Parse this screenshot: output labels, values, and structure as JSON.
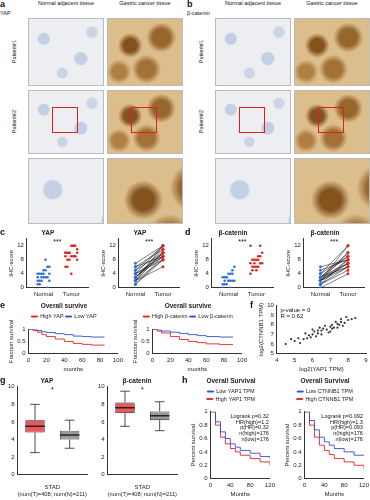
{
  "image_panels": [
    {
      "panel": "a",
      "marker": "YAP",
      "columns": [
        "Normal adjacent tissue",
        "Gastric cancer tissue"
      ],
      "rows": [
        "Patient#1",
        "Patient#2"
      ]
    },
    {
      "panel": "b",
      "marker": "β-catenin",
      "columns": [
        "Normal adjacent tissue",
        "Gastric cancer tissue"
      ],
      "rows": [
        "Patient#1",
        "Patient#2"
      ]
    }
  ],
  "chart_data": [
    {
      "panel": "c",
      "type": "dot",
      "title": "YAP",
      "y_label": "IHC-score",
      "categories": [
        "Normal",
        "Tumor"
      ],
      "values": [
        [
          1,
          2,
          2,
          3,
          3,
          3,
          4,
          4,
          4,
          4,
          5,
          5,
          6,
          6,
          2,
          1,
          3,
          4,
          8,
          0,
          2,
          3
        ],
        [
          6,
          8,
          8,
          9,
          9,
          9,
          10,
          10,
          10,
          10,
          12,
          12,
          12,
          8,
          9,
          6,
          10,
          4,
          12,
          9,
          11,
          10
        ]
      ],
      "colors": [
        "#2f6fd6",
        "#e02424"
      ],
      "annotations": [
        "***"
      ],
      "ylim": [
        0,
        14
      ],
      "yticks": [
        0,
        4,
        8,
        12
      ],
      "grid": false
    },
    {
      "type": "paired",
      "title": "YAP",
      "y_label": "IHC-score",
      "categories": [
        "Normal",
        "Tumor"
      ],
      "pairs": [
        [
          2,
          10
        ],
        [
          3,
          9
        ],
        [
          4,
          12
        ],
        [
          1,
          8
        ],
        [
          5,
          10
        ],
        [
          3,
          11
        ],
        [
          6,
          9
        ],
        [
          2,
          12
        ],
        [
          4,
          8
        ],
        [
          3,
          10
        ],
        [
          7,
          12
        ],
        [
          2,
          6
        ],
        [
          4,
          9
        ],
        [
          5,
          12
        ],
        [
          3,
          10
        ],
        [
          1,
          9
        ],
        [
          6,
          11
        ],
        [
          2,
          8
        ]
      ],
      "color": "#000000",
      "colors": [
        "#2f6fd6",
        "#e02424"
      ],
      "annotations": [
        "***"
      ],
      "ylim": [
        0,
        14
      ],
      "yticks": [
        0,
        4,
        8,
        12
      ],
      "grid": false
    },
    {
      "panel": "d",
      "type": "dot",
      "title": "β-catenin",
      "y_label": "IHC-score",
      "categories": [
        "Normal",
        "Tumor"
      ],
      "values": [
        [
          0,
          1,
          1,
          2,
          2,
          2,
          2,
          3,
          3,
          3,
          4,
          4,
          5,
          6,
          1,
          2,
          3,
          2,
          0,
          4
        ],
        [
          4,
          5,
          6,
          6,
          6,
          7,
          7,
          7,
          8,
          8,
          8,
          9,
          9,
          10,
          12,
          6,
          7,
          5,
          8,
          12
        ]
      ],
      "colors": [
        "#2f6fd6",
        "#e02424"
      ],
      "annotations": [
        "***"
      ],
      "ylim": [
        0,
        14
      ],
      "yticks": [
        0,
        4,
        8,
        12
      ],
      "grid": false
    },
    {
      "type": "paired",
      "title": "β-catenin",
      "y_label": "IHC-score",
      "categories": [
        "Normal",
        "Tumor"
      ],
      "pairs": [
        [
          1,
          6
        ],
        [
          2,
          8
        ],
        [
          3,
          7
        ],
        [
          2,
          12
        ],
        [
          4,
          9
        ],
        [
          1,
          5
        ],
        [
          2,
          7
        ],
        [
          3,
          10
        ],
        [
          5,
          8
        ],
        [
          2,
          6
        ],
        [
          0,
          4
        ],
        [
          3,
          9
        ],
        [
          4,
          12
        ],
        [
          2,
          7
        ],
        [
          1,
          8
        ],
        [
          6,
          8
        ],
        [
          2,
          10
        ],
        [
          3,
          6
        ]
      ],
      "color": "#000000",
      "colors": [
        "#2f6fd6",
        "#e02424"
      ],
      "annotations": [
        "***"
      ],
      "ylim": [
        0,
        14
      ],
      "yticks": [
        0,
        4,
        8,
        12
      ],
      "grid": false
    },
    {
      "panel": "e",
      "type": "line",
      "title": "Overall survive",
      "x_label": "months",
      "y_label": "Fraction survival",
      "line_style": "step",
      "legend": "top",
      "series": [
        {
          "name": "High YAP",
          "color": "#e02424",
          "x": [
            0,
            5,
            10,
            15,
            20,
            30,
            40,
            50,
            60,
            70,
            85
          ],
          "values": [
            1,
            0.95,
            0.88,
            0.78,
            0.7,
            0.6,
            0.5,
            0.42,
            0.38,
            0.35,
            0.35
          ]
        },
        {
          "name": "Low YAP",
          "color": "#2f4fd6",
          "x": [
            0,
            5,
            10,
            15,
            20,
            30,
            40,
            50,
            60,
            70,
            85
          ],
          "values": [
            1,
            0.98,
            0.95,
            0.9,
            0.87,
            0.82,
            0.78,
            0.72,
            0.7,
            0.68,
            0.68
          ]
        }
      ],
      "xlim": [
        0,
        100
      ],
      "xticks": [
        0,
        20,
        40,
        60,
        80,
        100
      ],
      "ylim": [
        0,
        1
      ],
      "yticks": [
        0,
        0.5,
        1
      ],
      "grid": false
    },
    {
      "type": "line",
      "title": "Overall survive",
      "x_label": "months",
      "y_label": "Fraction survival",
      "line_style": "step",
      "legend": "top",
      "series": [
        {
          "name": "High β-catenin",
          "color": "#e02424",
          "x": [
            0,
            5,
            10,
            20,
            30,
            40,
            50,
            60,
            75,
            90
          ],
          "values": [
            1,
            0.93,
            0.85,
            0.7,
            0.58,
            0.5,
            0.45,
            0.4,
            0.37,
            0.37
          ]
        },
        {
          "name": "Low β-catenin",
          "color": "#2f4fd6",
          "x": [
            0,
            5,
            10,
            20,
            30,
            40,
            50,
            60,
            75,
            90
          ],
          "values": [
            1,
            0.97,
            0.93,
            0.88,
            0.83,
            0.78,
            0.74,
            0.7,
            0.68,
            0.68
          ]
        }
      ],
      "xlim": [
        0,
        100
      ],
      "xticks": [
        0,
        20,
        40,
        60,
        80,
        100
      ],
      "ylim": [
        0,
        1
      ],
      "yticks": [
        0,
        0.5,
        1
      ],
      "grid": false
    },
    {
      "panel": "f",
      "type": "scatter",
      "x_label": "log2(YAP1 TPM)",
      "y_label": "log2(CTNNB1 TPM)",
      "annotations": [
        "p-value = 0",
        "R = 0.62"
      ],
      "color": "#333333",
      "x": [
        4.5,
        5.0,
        5.2,
        5.5,
        5.8,
        6.0,
        6.1,
        6.3,
        6.5,
        6.6,
        6.8,
        7.0,
        7.1,
        7.2,
        7.4,
        7.5,
        7.6,
        7.8,
        8.0,
        8.2,
        5.6,
        6.2,
        6.9,
        7.3,
        7.7,
        5.9,
        6.4,
        7.0,
        6.7,
        7.9,
        4.8,
        5.3,
        6.0,
        6.5,
        7.1,
        7.6,
        8.4,
        6.3,
        5.7,
        7.4
      ],
      "values": [
        6.0,
        6.3,
        6.6,
        6.5,
        6.9,
        7.0,
        7.3,
        7.1,
        7.4,
        7.6,
        7.5,
        7.8,
        8.0,
        7.7,
        8.1,
        8.0,
        8.3,
        8.2,
        8.5,
        8.6,
        7.1,
        6.8,
        7.2,
        8.3,
        7.9,
        6.7,
        7.7,
        7.3,
        7.9,
        8.8,
        6.5,
        6.1,
        7.5,
        7.0,
        7.6,
        8.6,
        8.7,
        7.4,
        6.6,
        7.7
      ],
      "xlim": [
        4,
        9
      ],
      "xticks": [
        4,
        5,
        6,
        7,
        8,
        9
      ],
      "ylim": [
        5,
        10
      ],
      "yticks": [
        5,
        6,
        7,
        8,
        9,
        10
      ],
      "grid": false
    },
    {
      "panel": "g",
      "type": "box",
      "title": "YAP",
      "x_label": "STAD",
      "note": "(num(T)=408; num(N)=211)",
      "annotations": [
        "*"
      ],
      "tick_labels": "y",
      "boxes": [
        {
          "color": "#e8585a",
          "min": 2.5,
          "q1": 4.8,
          "median": 5.5,
          "q3": 6.2,
          "max": 8
        },
        {
          "color": "#9a9a9a",
          "min": 3.0,
          "q1": 4.0,
          "median": 4.5,
          "q3": 5.0,
          "max": 6.2
        }
      ],
      "ylim": [
        0,
        10
      ],
      "yticks": [
        0,
        2,
        4,
        6,
        8,
        10
      ],
      "grid": false
    },
    {
      "type": "box",
      "title": "β-catenin",
      "x_label": "STAD",
      "note": "(num(T)=408; num(N)=211)",
      "annotations": [
        "*"
      ],
      "tick_labels": "y",
      "boxes": [
        {
          "color": "#e8585a",
          "min": 5.5,
          "q1": 7.0,
          "median": 7.6,
          "q3": 8.2,
          "max": 9.5
        },
        {
          "color": "#9a9a9a",
          "min": 5.0,
          "q1": 6.2,
          "median": 6.7,
          "q3": 7.2,
          "max": 8.3
        }
      ],
      "ylim": [
        0,
        10
      ],
      "yticks": [
        0,
        2,
        4,
        6,
        8,
        10
      ],
      "grid": false
    },
    {
      "panel": "h",
      "type": "line",
      "title": "Overall Survival",
      "x_label": "Months",
      "y_label": "Percent survival",
      "line_style": "step",
      "legend": "top",
      "annotations": [
        "Logrank p=0.32",
        "HR(high)=1.2",
        "p(HR)=0.32",
        "n(high)=176",
        "n(low)=176"
      ],
      "series": [
        {
          "name": "Low YAP1 TPM",
          "color": "#2f4fd6",
          "x": [
            0,
            10,
            20,
            30,
            40,
            50,
            60,
            80,
            100,
            120
          ],
          "values": [
            1,
            0.85,
            0.7,
            0.6,
            0.52,
            0.47,
            0.42,
            0.38,
            0.33,
            0.3
          ]
        },
        {
          "name": "High YAP1 TPM",
          "color": "#e02424",
          "x": [
            0,
            10,
            20,
            30,
            40,
            50,
            60,
            80,
            100,
            120
          ],
          "values": [
            1,
            0.8,
            0.62,
            0.52,
            0.45,
            0.4,
            0.35,
            0.3,
            0.25,
            0.2
          ]
        }
      ],
      "xlim": [
        0,
        120
      ],
      "xticks": [
        0,
        40,
        80,
        120
      ],
      "ylim": [
        0,
        1
      ],
      "yticks": [
        0,
        0.2,
        0.4,
        0.6,
        0.8,
        1
      ],
      "grid": false
    },
    {
      "type": "line",
      "title": "Overall Survival",
      "x_label": "Months",
      "y_label": "Percent survival",
      "line_style": "step",
      "legend": "top",
      "annotations": [
        "Logrank p=0.092",
        "HR(high)=1.3",
        "p(HR)=0.093",
        "n(high)=176",
        "n(low)=176"
      ],
      "series": [
        {
          "name": "Low CTNNB1 TPM",
          "color": "#2f4fd6",
          "x": [
            0,
            10,
            20,
            30,
            40,
            50,
            60,
            80,
            100,
            120
          ],
          "values": [
            1,
            0.87,
            0.73,
            0.62,
            0.55,
            0.5,
            0.45,
            0.4,
            0.35,
            0.35
          ]
        },
        {
          "name": "High CTNNB1 TPM",
          "color": "#e02424",
          "x": [
            0,
            10,
            20,
            30,
            40,
            50,
            60,
            80,
            100,
            120
          ],
          "values": [
            1,
            0.8,
            0.62,
            0.5,
            0.42,
            0.36,
            0.3,
            0.25,
            0.2,
            0.15
          ]
        }
      ],
      "xlim": [
        0,
        120
      ],
      "xticks": [
        0,
        40,
        80,
        120
      ],
      "ylim": [
        0,
        1
      ],
      "yticks": [
        0,
        0.2,
        0.4,
        0.6,
        0.8,
        1
      ],
      "grid": false
    }
  ]
}
